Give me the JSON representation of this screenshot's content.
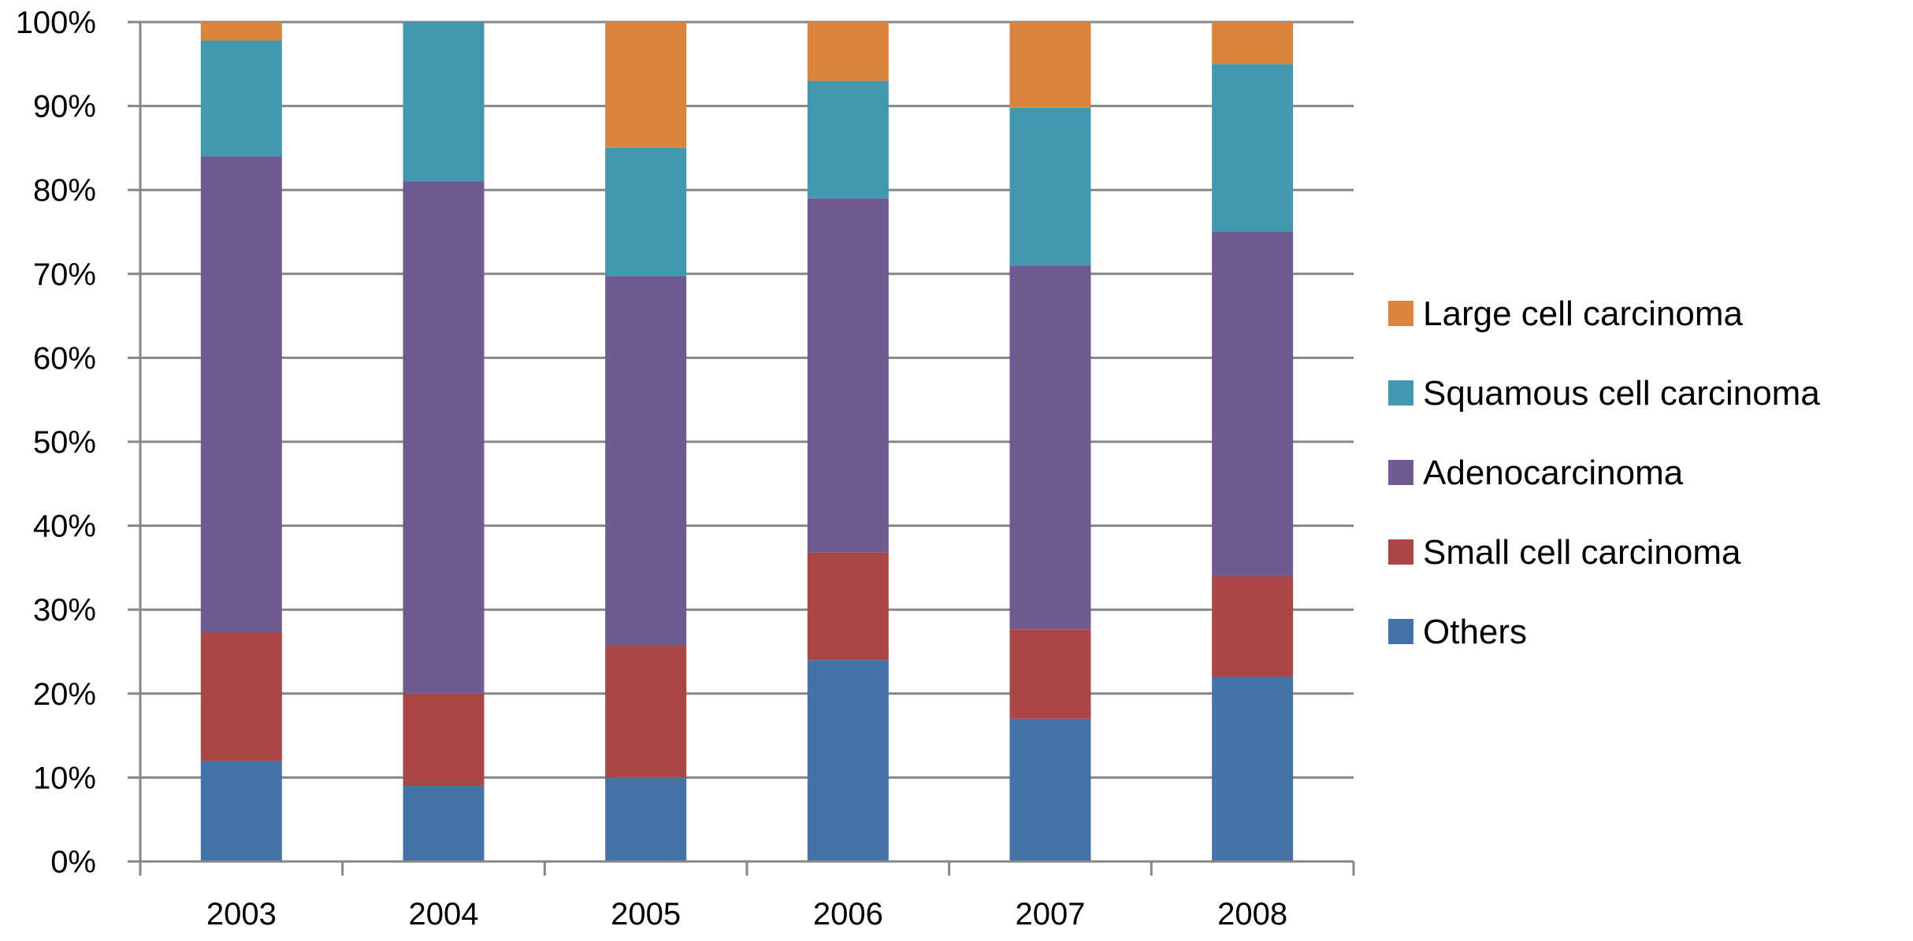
{
  "chart_data": {
    "type": "bar",
    "stacked": true,
    "percent": true,
    "title": "",
    "xlabel": "",
    "ylabel": "",
    "ylim": [
      0,
      100
    ],
    "y_ticks": [
      "0%",
      "10%",
      "20%",
      "30%",
      "40%",
      "50%",
      "60%",
      "70%",
      "80%",
      "90%",
      "100%"
    ],
    "categories": [
      "2003",
      "2004",
      "2005",
      "2006",
      "2007",
      "2008"
    ],
    "series": [
      {
        "name": "Others",
        "color": "#4572A7",
        "values": [
          12,
          9,
          10,
          24,
          17,
          22
        ]
      },
      {
        "name": "Small cell carcinoma",
        "color": "#AA4643",
        "values": [
          15.3,
          11,
          15.7,
          12.8,
          10.6,
          12
        ]
      },
      {
        "name": "Adenocarcinoma",
        "color": "#715A90",
        "values": [
          56.7,
          61,
          44,
          42.2,
          43.4,
          41
        ]
      },
      {
        "name": "Squamous cell carcinoma",
        "color": "#4198AF",
        "values": [
          13.8,
          19,
          15.3,
          14,
          18.8,
          20
        ]
      },
      {
        "name": "Large cell carcinoma",
        "color": "#DB843D",
        "values": [
          2.2,
          0,
          15,
          7,
          10.2,
          5
        ]
      }
    ],
    "legend": {
      "position": "right",
      "order": [
        "Large cell carcinoma",
        "Squamous cell carcinoma",
        "Adenocarcinoma",
        "Small cell carcinoma",
        "Others"
      ]
    },
    "grid": true,
    "gridline_color": "#868686"
  }
}
